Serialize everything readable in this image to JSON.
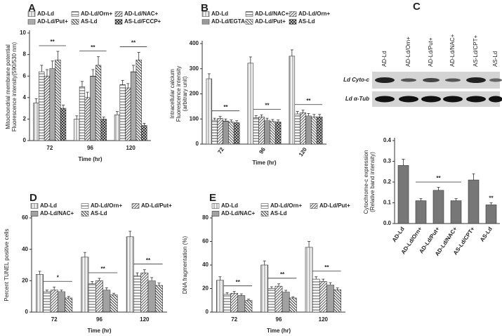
{
  "chart_data": [
    {
      "type": "bar",
      "title": "A",
      "ylabel": [
        "Mitochondrial membrane potential",
        "Fluorescence intensity(590/530 nm)"
      ],
      "xlabel": "Time (hr)",
      "categories": [
        "72",
        "96",
        "120"
      ],
      "series": [
        {
          "name": "AD-Ld",
          "color": "#888888",
          "values": [
            3.5,
            2.0,
            2.4
          ],
          "errors": [
            0.4,
            0.3,
            0.3
          ]
        },
        {
          "name": "AD-Ld/Orn+",
          "color": "#555555",
          "values": [
            6.4,
            5.0,
            5.2
          ],
          "errors": [
            0.6,
            0.5,
            0.4
          ]
        },
        {
          "name": "AD-Ld/NAC+",
          "color": "#444444",
          "values": [
            6.0,
            4.0,
            4.9
          ],
          "errors": [
            0.6,
            0.5,
            0.4
          ]
        },
        {
          "name": "AD-Ld/Put+",
          "color": "#555555",
          "values": [
            6.7,
            6.0,
            6.4
          ],
          "errors": [
            0.7,
            0.6,
            0.6
          ]
        },
        {
          "name": "AS-Ld",
          "color": "#333333",
          "values": [
            7.5,
            7.0,
            7.5
          ],
          "errors": [
            0.8,
            0.8,
            0.7
          ]
        },
        {
          "name": "AS-Ld/FCCP+",
          "color": "#333333",
          "values": [
            3.0,
            2.0,
            1.4
          ],
          "errors": [
            0.3,
            0.2,
            0.2
          ]
        }
      ],
      "annotations": [
        "**",
        "**",
        "**"
      ],
      "ylim": [
        0,
        10
      ],
      "yticks": [
        0,
        2,
        4,
        6,
        8,
        10
      ]
    },
    {
      "type": "bar",
      "title": "B",
      "ylabel": [
        "Intracellular calcium",
        "Fluorescence intensity",
        "(arbitrary unit)"
      ],
      "xlabel": "Time (hr)",
      "categories": [
        "72",
        "96",
        "120"
      ],
      "series": [
        {
          "name": "AD-Ld",
          "color": "#888888",
          "values": [
            260,
            322,
            350
          ],
          "errors": [
            20,
            25,
            25
          ]
        },
        {
          "name": "AD-Ld/NAC+",
          "color": "#444444",
          "values": [
            95,
            105,
            120
          ],
          "errors": [
            8,
            8,
            10
          ]
        },
        {
          "name": "AD-Ld/Orn+",
          "color": "#555555",
          "values": [
            102,
            108,
            125
          ],
          "errors": [
            8,
            8,
            10
          ]
        },
        {
          "name": "AD-Ld/EGTA+",
          "color": "#333333",
          "values": [
            92,
            95,
            112
          ],
          "errors": [
            8,
            8,
            10
          ]
        },
        {
          "name": "AD-Ld/Put+",
          "color": "#555555",
          "values": [
            88,
            90,
            108
          ],
          "errors": [
            8,
            8,
            10
          ]
        },
        {
          "name": "AS-Ld",
          "color": "#333333",
          "values": [
            85,
            88,
            108
          ],
          "errors": [
            8,
            8,
            10
          ]
        }
      ],
      "annotations": [
        "**",
        "**",
        "**"
      ],
      "ylim": [
        0,
        400
      ],
      "yticks": [
        0,
        100,
        200,
        300,
        400
      ]
    },
    {
      "type": "bar",
      "title": "C",
      "ylabel": [
        "Cytochrome-c expression",
        "(Relative band intensity)"
      ],
      "blot_rows": [
        "Ld Cyto-c",
        "Ld α-Tub"
      ],
      "categories": [
        "AD-Ld",
        "AD-Ld/Orn+",
        "AD-Ld/Put+",
        "AD-Ld/NAC+",
        "AS-Ld/CPT+",
        "AS-Ld"
      ],
      "values": [
        0.28,
        0.11,
        0.16,
        0.11,
        0.21,
        0.09
      ],
      "errors": [
        0.03,
        0.01,
        0.015,
        0.01,
        0.03,
        0.01
      ],
      "color": "#777777",
      "annotations": [
        null,
        null,
        "**",
        null,
        null,
        "**"
      ],
      "ylim": [
        0,
        0.4
      ],
      "yticks": [
        {
          "value": 0,
          "label": "0.0"
        },
        0.1,
        0.2,
        0.3,
        0.4
      ]
    },
    {
      "type": "bar",
      "title": "D",
      "ylabel": [
        "Percent TUNEL positive cells"
      ],
      "xlabel": "Time (hr)",
      "categories": [
        "72",
        "96",
        "120"
      ],
      "series": [
        {
          "name": "AD-Ld",
          "color": "#888888",
          "values": [
            24,
            35,
            48
          ],
          "errors": [
            2,
            3,
            3.5
          ]
        },
        {
          "name": "AD-Ld/Orn+",
          "color": "#555555",
          "values": [
            13,
            18,
            23
          ],
          "errors": [
            1,
            1.5,
            2
          ]
        },
        {
          "name": "AD-Ld/Put+",
          "color": "#555555",
          "values": [
            14,
            20,
            25
          ],
          "errors": [
            2,
            1.5,
            2
          ]
        },
        {
          "name": "AD-Ld/NAC+",
          "color": "#444444",
          "values": [
            13,
            14,
            20
          ],
          "errors": [
            1,
            1.5,
            2
          ]
        },
        {
          "name": "AS-Ld",
          "color": "#333333",
          "values": [
            9,
            11,
            17
          ],
          "errors": [
            1,
            1,
            1.5
          ]
        }
      ],
      "annotations": [
        "*",
        "**",
        "**"
      ],
      "ylim": [
        0,
        60
      ],
      "yticks": [
        0,
        20,
        40,
        60
      ]
    },
    {
      "type": "bar",
      "title": "E",
      "ylabel": [
        "DNA fragmentation (%)"
      ],
      "xlabel": "Time (hr)",
      "categories": [
        "72",
        "96",
        "120"
      ],
      "series": [
        {
          "name": "AD-Ld",
          "color": "#888888",
          "values": [
            27,
            40,
            55
          ],
          "errors": [
            3,
            3.5,
            5
          ]
        },
        {
          "name": "AD-Ld/Orn+",
          "color": "#555555",
          "values": [
            15,
            20,
            28
          ],
          "errors": [
            1.5,
            1.5,
            2
          ]
        },
        {
          "name": "AD-Ld/Put+",
          "color": "#555555",
          "values": [
            16,
            22,
            26
          ],
          "errors": [
            1.5,
            2,
            2
          ]
        },
        {
          "name": "AD-Ld/NAC+",
          "color": "#444444",
          "values": [
            14,
            17,
            23
          ],
          "errors": [
            1.5,
            1.5,
            2
          ]
        },
        {
          "name": "AS-Ld",
          "color": "#333333",
          "values": [
            10,
            12,
            19
          ],
          "errors": [
            1,
            1,
            1.5
          ]
        }
      ],
      "annotations": [
        "**",
        "**",
        "**"
      ],
      "ylim": [
        0,
        80
      ],
      "yticks": [
        0,
        20,
        40,
        60,
        80
      ]
    }
  ]
}
